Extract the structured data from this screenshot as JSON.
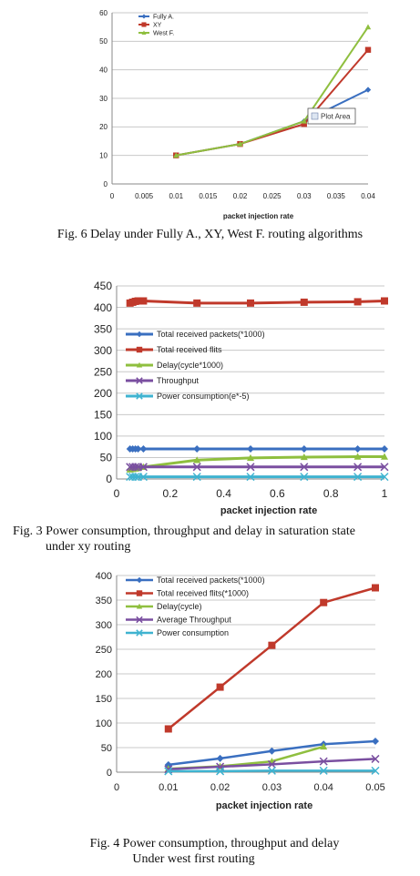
{
  "chart_data": [
    {
      "id": "fig6",
      "type": "line",
      "xlabel": "packet injection rate",
      "xlim": [
        0,
        0.04
      ],
      "ylim": [
        0,
        60
      ],
      "xticks": [
        0,
        0.005,
        0.01,
        0.015,
        0.02,
        0.025,
        0.03,
        0.035,
        0.04
      ],
      "yticks": [
        0,
        10,
        20,
        30,
        40,
        50,
        60
      ],
      "tooltip": "Plot Area",
      "x": [
        0.01,
        0.02,
        0.03,
        0.04
      ],
      "series": [
        {
          "name": "Fully A.",
          "color": "#3a6fc0",
          "marker": "diamond",
          "values": [
            10,
            14,
            22,
            33
          ]
        },
        {
          "name": "XY",
          "color": "#c0392b",
          "marker": "square",
          "values": [
            10,
            14,
            21,
            47
          ]
        },
        {
          "name": "West F.",
          "color": "#8fbf3f",
          "marker": "triangle",
          "values": [
            10,
            14,
            22,
            55
          ]
        }
      ]
    },
    {
      "id": "fig3",
      "type": "line",
      "xlabel": "packet injection rate",
      "xlim": [
        0,
        1
      ],
      "ylim": [
        0,
        450
      ],
      "xticks": [
        0,
        0.2,
        0.4,
        0.6,
        0.8,
        1
      ],
      "yticks": [
        0,
        50,
        100,
        150,
        200,
        250,
        300,
        350,
        400,
        450
      ],
      "series": [
        {
          "name": "Total received packets(*1000)",
          "color": "#3a6fc0",
          "marker": "diamond",
          "x": [
            0.05,
            0.06,
            0.07,
            0.08,
            0.1,
            0.3,
            0.5,
            0.7,
            0.9,
            1.0
          ],
          "values": [
            70,
            70,
            70,
            70,
            70,
            70,
            70,
            70,
            70,
            70
          ]
        },
        {
          "name": "Total received flits",
          "color": "#c0392b",
          "marker": "square",
          "x": [
            0.05,
            0.06,
            0.07,
            0.08,
            0.1,
            0.3,
            0.5,
            0.7,
            0.9,
            1.0
          ],
          "values": [
            410,
            412,
            414,
            415,
            415,
            410,
            410,
            412,
            413,
            415
          ]
        },
        {
          "name": "Delay(cycle*1000)",
          "color": "#8fbf3f",
          "marker": "triangle",
          "x": [
            0.05,
            0.06,
            0.07,
            0.08,
            0.1,
            0.3,
            0.5,
            0.7,
            0.9,
            1.0
          ],
          "values": [
            22,
            23,
            24,
            25,
            28,
            44,
            49,
            51,
            52,
            52
          ]
        },
        {
          "name": "Throughput",
          "color": "#7a4fa0",
          "marker": "x",
          "x": [
            0.05,
            0.06,
            0.07,
            0.08,
            0.1,
            0.3,
            0.5,
            0.7,
            0.9,
            1.0
          ],
          "values": [
            28,
            28,
            28,
            28,
            28,
            28,
            28,
            28,
            28,
            28
          ]
        },
        {
          "name": "Power consumption(e*-5)",
          "color": "#3fb3d0",
          "marker": "x",
          "x": [
            0.05,
            0.06,
            0.07,
            0.08,
            0.1,
            0.3,
            0.5,
            0.7,
            0.9,
            1.0
          ],
          "values": [
            5,
            5,
            5,
            5,
            5,
            5,
            5,
            5,
            5,
            5
          ]
        }
      ]
    },
    {
      "id": "fig4",
      "type": "line",
      "xlabel": "packet injection rate",
      "xlim": [
        0,
        0.05
      ],
      "ylim": [
        0,
        400
      ],
      "xticks": [
        0,
        0.01,
        0.02,
        0.03,
        0.04,
        0.05
      ],
      "yticks": [
        0,
        50,
        100,
        150,
        200,
        250,
        300,
        350,
        400
      ],
      "series": [
        {
          "name": "Total received packets(*1000)",
          "color": "#3a6fc0",
          "marker": "diamond",
          "x": [
            0.01,
            0.02,
            0.03,
            0.04,
            0.05
          ],
          "values": [
            15,
            28,
            43,
            57,
            63
          ]
        },
        {
          "name": "Total received flits(*1000)",
          "color": "#c0392b",
          "marker": "square",
          "x": [
            0.01,
            0.02,
            0.03,
            0.04,
            0.05
          ],
          "values": [
            88,
            173,
            258,
            345,
            375
          ]
        },
        {
          "name": "Delay(cycle)",
          "color": "#8fbf3f",
          "marker": "triangle",
          "x": [
            0.01,
            0.02,
            0.03,
            0.04
          ],
          "values": [
            7,
            12,
            22,
            52
          ]
        },
        {
          "name": "Average Throughput",
          "color": "#7a4fa0",
          "marker": "x",
          "x": [
            0.01,
            0.02,
            0.03,
            0.04,
            0.05
          ],
          "values": [
            6,
            11,
            16,
            22,
            27
          ]
        },
        {
          "name": "Power consumption",
          "color": "#3fb3d0",
          "marker": "x",
          "x": [
            0.01,
            0.02,
            0.03,
            0.04,
            0.05
          ],
          "values": [
            2,
            2,
            3,
            3,
            3
          ]
        }
      ]
    }
  ],
  "captions": {
    "fig6": "Fig. 6 Delay under Fully A., XY, West F. routing algorithms",
    "fig3_line1": "Fig. 3 Power consumption, throughput and delay  in saturation state",
    "fig3_line2": "under xy routing",
    "fig4_line1": "Fig. 4 Power consumption, throughput and delay",
    "fig4_line2": "Under west first routing"
  }
}
